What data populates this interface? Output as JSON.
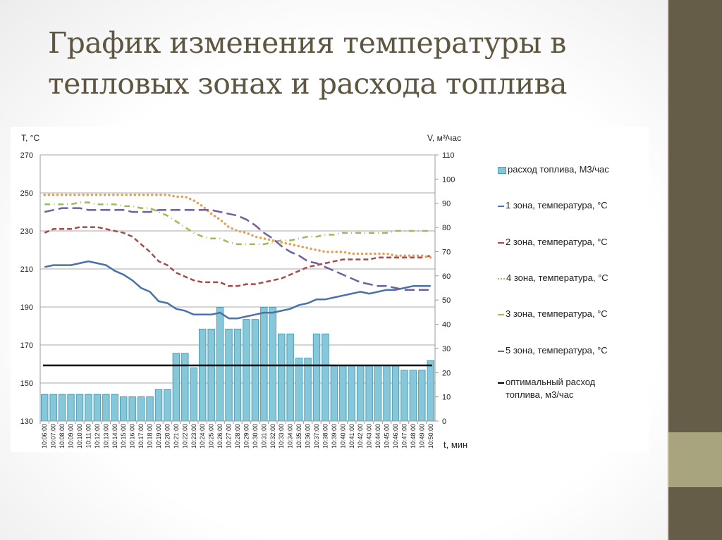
{
  "slide": {
    "title_line1": "График изменения температуры в",
    "title_line2": "тепловых зонах и расхода топлива",
    "colors": {
      "panel": "#655d47",
      "band": "#a8a47e",
      "title": "#5e5641"
    }
  },
  "chart_data": {
    "type": "bar+line",
    "title": "График изменения температуры в тепловых зонах и расхода топлива",
    "xlabel": "t, мин",
    "ylabel_left": "T, °C",
    "ylabel_right": "V,  м³/час",
    "ylim_left": [
      130,
      270
    ],
    "yticks_left": [
      130,
      150,
      170,
      190,
      210,
      230,
      250,
      270
    ],
    "ylim_right": [
      0,
      110
    ],
    "yticks_right": [
      0,
      10,
      20,
      30,
      40,
      50,
      60,
      70,
      80,
      90,
      100,
      110
    ],
    "grid": true,
    "legend_position": "right",
    "categories": [
      "10:06:00",
      "10:07:00",
      "10:08:00",
      "10:09:00",
      "10:10:00",
      "10:11:00",
      "10:12:00",
      "10:13:00",
      "10:14:00",
      "10:15:00",
      "10:16:00",
      "10:17:00",
      "10:18:00",
      "10:19:00",
      "10:20:00",
      "10:21:00",
      "10:22:00",
      "10:23:00",
      "10:24:00",
      "10:25:00",
      "10:26:00",
      "10:27:00",
      "10:28:00",
      "10:29:00",
      "10:30:00",
      "10:31:00",
      "10:32:00",
      "10:33:00",
      "10:34:00",
      "10:35:00",
      "10:36:00",
      "10:37:00",
      "10:38:00",
      "10:39:00",
      "10:40:00",
      "10:41:00",
      "10:42:00",
      "10:43:00",
      "10:44:00",
      "10:45:00",
      "10:46:00",
      "10:47:00",
      "10:48:00",
      "10:49:00",
      "10:50:00"
    ],
    "series": [
      {
        "name": "расход топлива,  М3/час",
        "type": "bar",
        "axis": "right",
        "color": "#86c7da",
        "values": [
          11,
          11,
          11,
          11,
          11,
          11,
          11,
          11,
          11,
          10,
          10,
          10,
          10,
          13,
          13,
          28,
          28,
          22,
          38,
          38,
          47,
          38,
          38,
          42,
          42,
          47,
          47,
          36,
          36,
          26,
          26,
          36,
          36,
          23,
          23,
          23,
          23,
          23,
          23,
          23,
          23,
          21,
          21,
          21,
          25
        ]
      },
      {
        "name": "1 зона, температура, °C",
        "type": "line",
        "axis": "left",
        "color": "#4a72a8",
        "style": "solid",
        "values": [
          211,
          212,
          212,
          212,
          213,
          214,
          213,
          212,
          209,
          207,
          204,
          200,
          198,
          193,
          192,
          189,
          188,
          186,
          186,
          186,
          187,
          184,
          184,
          185,
          186,
          187,
          187,
          188,
          189,
          191,
          192,
          194,
          194,
          195,
          196,
          197,
          198,
          197,
          198,
          199,
          199,
          200,
          201,
          201,
          201
        ]
      },
      {
        "name": "2 зона, температура, °C",
        "type": "line",
        "axis": "left",
        "color": "#a84a4a",
        "style": "dashed",
        "values": [
          229,
          231,
          231,
          231,
          232,
          232,
          232,
          231,
          230,
          229,
          227,
          223,
          219,
          214,
          212,
          208,
          206,
          204,
          203,
          203,
          203,
          201,
          201,
          202,
          202,
          203,
          204,
          205,
          207,
          209,
          211,
          212,
          213,
          214,
          215,
          215,
          215,
          215,
          216,
          216,
          216,
          216,
          216,
          216,
          217
        ]
      },
      {
        "name": "4 зона, температура, °C",
        "type": "line",
        "axis": "left",
        "color": "#e3a05a",
        "style": "dotted",
        "values": [
          249,
          249,
          249,
          249,
          249,
          249,
          249,
          249,
          249,
          249,
          249,
          249,
          249,
          249,
          249,
          248,
          248,
          246,
          243,
          239,
          236,
          232,
          230,
          229,
          227,
          226,
          225,
          224,
          223,
          222,
          221,
          220,
          219,
          219,
          219,
          218,
          218,
          218,
          218,
          218,
          217,
          217,
          217,
          217,
          216
        ]
      },
      {
        "name": "3 зона, температура, °C",
        "type": "line",
        "axis": "left",
        "color": "#9bbb59",
        "style": "dashdot",
        "values": [
          244,
          244,
          244,
          244,
          245,
          245,
          244,
          244,
          244,
          243,
          243,
          242,
          242,
          240,
          238,
          235,
          232,
          229,
          227,
          226,
          226,
          224,
          223,
          223,
          223,
          223,
          224,
          225,
          225,
          226,
          227,
          227,
          228,
          228,
          229,
          229,
          229,
          229,
          229,
          229,
          230,
          230,
          230,
          230,
          230
        ]
      },
      {
        "name": "5 зона, температура, °C",
        "type": "line",
        "axis": "left",
        "color": "#7060a0",
        "style": "longdash",
        "values": [
          240,
          241,
          242,
          242,
          242,
          241,
          241,
          241,
          241,
          241,
          240,
          240,
          240,
          241,
          241,
          241,
          241,
          241,
          241,
          241,
          240,
          239,
          238,
          236,
          233,
          229,
          226,
          222,
          219,
          217,
          214,
          213,
          211,
          209,
          207,
          205,
          203,
          202,
          201,
          201,
          200,
          199,
          199,
          199,
          199
        ]
      },
      {
        "name": "оптимальный  расход топлива, м3/час",
        "type": "line",
        "axis": "right",
        "color": "#000000",
        "style": "solid",
        "values": [
          23,
          23,
          23,
          23,
          23,
          23,
          23,
          23,
          23,
          23,
          23,
          23,
          23,
          23,
          23,
          23,
          23,
          23,
          23,
          23,
          23,
          23,
          23,
          23,
          23,
          23,
          23,
          23,
          23,
          23,
          23,
          23,
          23,
          23,
          23,
          23,
          23,
          23,
          23,
          23,
          23,
          23,
          23,
          23,
          23
        ]
      }
    ]
  },
  "legend": {
    "items": [
      {
        "label": "расход топлива,  М3/час",
        "swatch": "box",
        "color": "#86c7da"
      },
      {
        "label": "1 зона, температура, °C",
        "swatch": "line",
        "color": "#4a72a8"
      },
      {
        "label": "2 зона, температура, °C",
        "swatch": "line",
        "color": "#a84a4a"
      },
      {
        "label": "4 зона, температура, °C",
        "swatch": "dots",
        "color": "#e3a05a"
      },
      {
        "label": "3 зона, температура, °C",
        "swatch": "line",
        "color": "#9bbb59"
      },
      {
        "label": "5 зона, температура, °C",
        "swatch": "line",
        "color": "#7060a0"
      },
      {
        "label": "оптимальный  расход",
        "label2": "топлива, м3/час",
        "swatch": "line",
        "color": "#000000"
      }
    ]
  }
}
